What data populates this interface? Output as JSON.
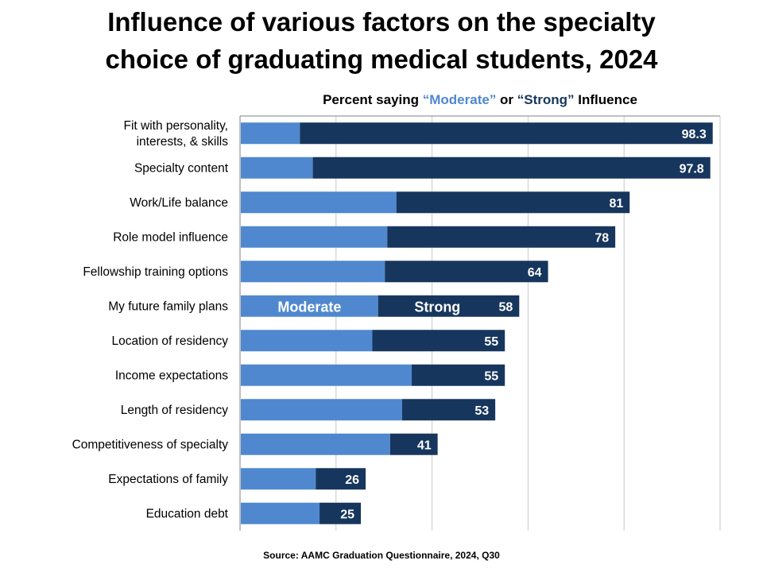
{
  "title_line1": "Influence of various factors on the specialty",
  "title_line2": "choice of graduating medical students, 2024",
  "subtitle": {
    "prefix": "Percent saying ",
    "moderate": "“Moderate”",
    "middle": " or ",
    "strong": "“Strong”",
    "suffix": " Influence"
  },
  "source": "Source: AAMC Graduation Questionnaire, 2024, Q30",
  "colors": {
    "moderate": "#4f88cf",
    "strong": "#17365d",
    "gridline": "#c8c8c8",
    "axis": "#808080"
  },
  "chart_data": {
    "type": "bar",
    "orientation": "horizontal",
    "stacked": true,
    "xlim": [
      0,
      100
    ],
    "grid": true,
    "categories": [
      [
        "Fit with personality,",
        "interests, & skills"
      ],
      [
        "Specialty content"
      ],
      [
        "Work/Life balance"
      ],
      [
        "Role model influence"
      ],
      [
        "Fellowship training options"
      ],
      [
        "My future family plans"
      ],
      [
        "Location of residency"
      ],
      [
        "Income expectations"
      ],
      [
        "Length of residency"
      ],
      [
        "Competitiveness of specialty"
      ],
      [
        "Expectations of family"
      ],
      [
        "Education debt"
      ]
    ],
    "series": [
      {
        "name": "Moderate",
        "values": [
          12.3,
          15.0,
          32.4,
          30.5,
          30.0,
          28.6,
          27.4,
          35.6,
          33.6,
          31.1,
          15.6,
          16.4
        ]
      },
      {
        "name": "Strong",
        "values": [
          86.0,
          82.8,
          48.6,
          47.5,
          34.0,
          29.4,
          27.6,
          19.4,
          19.4,
          9.9,
          10.4,
          8.6
        ]
      }
    ],
    "totals": [
      "98.3",
      "97.8",
      "81",
      "78",
      "64",
      "58",
      "55",
      "55",
      "53",
      "41",
      "26",
      "25"
    ],
    "inline_legend_row": 5
  }
}
